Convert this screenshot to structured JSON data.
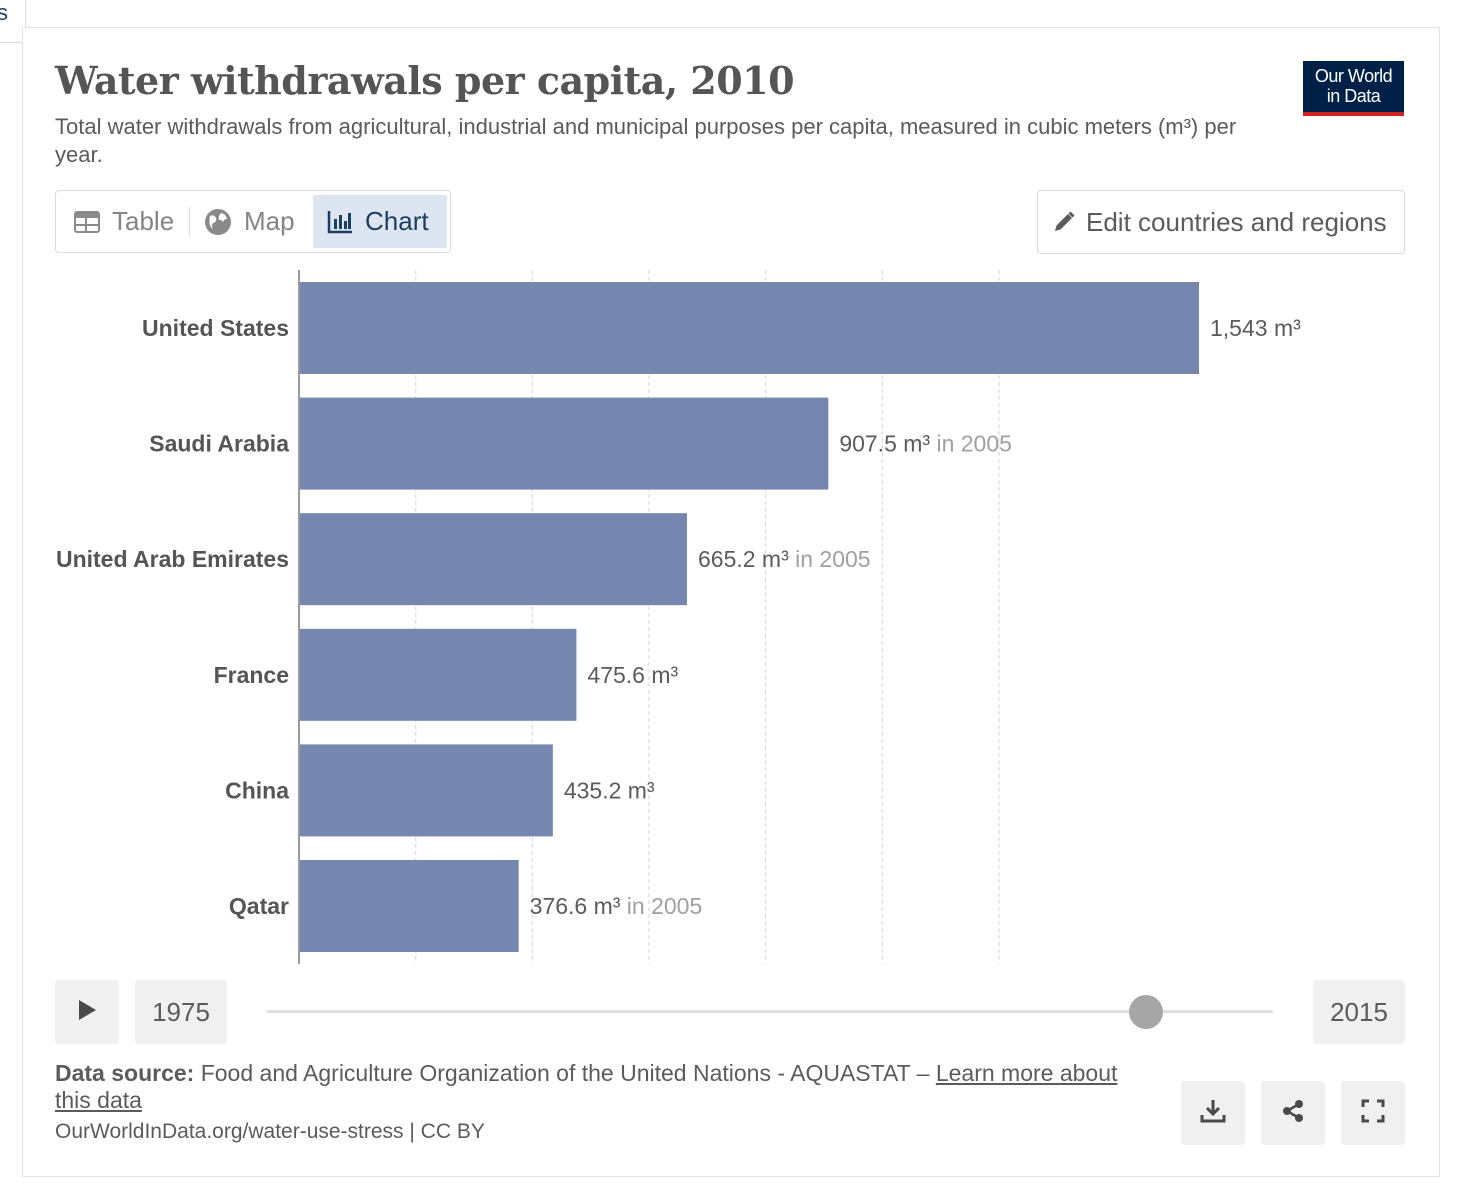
{
  "corner_tab": "s",
  "title": "Water withdrawals per capita, 2010",
  "subtitle": "Total water withdrawals from agricultural, industrial and municipal purposes per capita, measured in cubic meters (m³) per year.",
  "logo": {
    "line1": "Our World",
    "line2": "in Data"
  },
  "tabs": {
    "table": "Table",
    "map": "Map",
    "chart": "Chart",
    "active": "chart"
  },
  "edit_button": "Edit countries and regions",
  "colors": {
    "bar": "#7587ae",
    "logo_bg": "#002147",
    "logo_accent": "#ce261e",
    "active_tab_bg": "#dde5f0",
    "active_tab_text": "#1d3d63"
  },
  "chart_data": {
    "type": "bar",
    "orientation": "horizontal",
    "unit": "m³",
    "categories": [
      "United States",
      "Saudi Arabia",
      "United Arab Emirates",
      "France",
      "China",
      "Qatar"
    ],
    "values": [
      1543,
      907.5,
      665.2,
      475.6,
      435.2,
      376.6
    ],
    "value_labels": [
      "1,543 m³",
      "907.5 m³",
      "665.2 m³",
      "475.6 m³",
      "435.2 m³",
      "376.6 m³"
    ],
    "year_notes": [
      "",
      "in 2005",
      "in 2005",
      "",
      "",
      "in 2005"
    ],
    "xlim": [
      0,
      1800
    ],
    "gridlines": [
      200,
      400,
      600,
      800,
      1000,
      1200
    ],
    "grid": true
  },
  "timeline": {
    "start_year": "1975",
    "end_year": "2015",
    "selected_year": 2010
  },
  "footer": {
    "source_label": "Data source:",
    "source_text": "Food and Agriculture Organization of the United Nations - AQUASTAT –",
    "learn_more": "Learn more about this data",
    "url": "OurWorldInData.org/water-use-stress | CC BY"
  },
  "icons": {
    "play": "play-icon",
    "download": "download-icon",
    "share": "share-icon",
    "fullscreen": "fullscreen-icon",
    "table": "table-icon",
    "map": "globe-icon",
    "chart": "bar-chart-icon",
    "edit": "pencil-icon"
  }
}
